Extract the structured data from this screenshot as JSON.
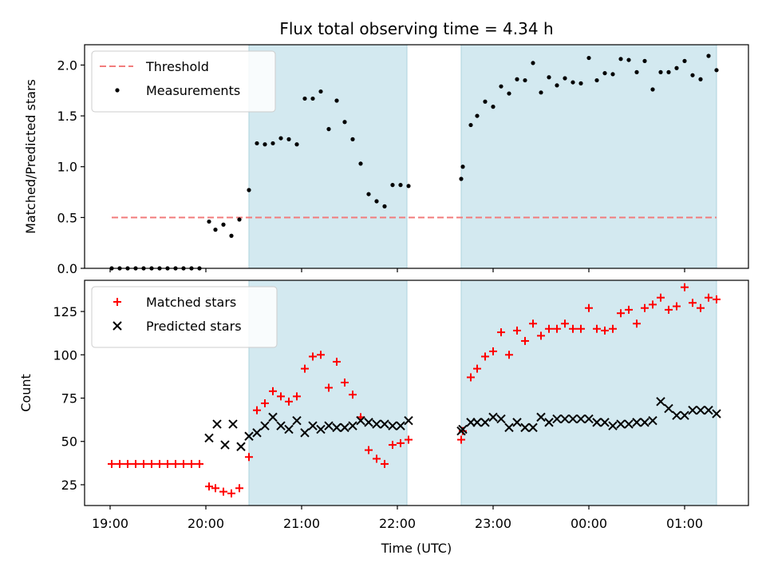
{
  "chart_data": [
    {
      "type": "scatter",
      "title": "Flux total observing time = 4.34 h",
      "xlabel": "",
      "ylabel": "Matched/Predicted stars",
      "ylim": [
        0,
        2.2
      ],
      "yticks": [
        "0.0",
        "0.5",
        "1.0",
        "1.5",
        "2.0"
      ],
      "ytick_values": [
        0,
        0.5,
        1.0,
        1.5,
        2.0
      ],
      "legend": {
        "placement": "upper-left"
      },
      "threshold": {
        "name": "Threshold",
        "value": 0.5,
        "x_start": "19:01",
        "x_end": "01:20",
        "color": "#f27c7c"
      },
      "shaded_regions": [
        {
          "start": "20:27",
          "end": "22:06",
          "color": "#d3e9f0"
        },
        {
          "start": "22:40",
          "end": "01:20",
          "color": "#d3e9f0"
        }
      ],
      "series": [
        {
          "name": "Measurements",
          "color": "#000000",
          "x": [
            "19:01",
            "19:06",
            "19:11",
            "19:16",
            "19:21",
            "19:26",
            "19:31",
            "19:36",
            "19:41",
            "19:46",
            "19:51",
            "19:56",
            "20:02",
            "20:06",
            "20:11",
            "20:16",
            "20:21",
            "20:27",
            "20:32",
            "20:37",
            "20:42",
            "20:47",
            "20:52",
            "20:57",
            "21:02",
            "21:07",
            "21:12",
            "21:17",
            "21:22",
            "21:27",
            "21:32",
            "21:37",
            "21:42",
            "21:47",
            "21:52",
            "21:57",
            "22:02",
            "22:07",
            "22:40",
            "22:41",
            "22:46",
            "22:50",
            "22:55",
            "23:00",
            "23:05",
            "23:10",
            "23:15",
            "23:20",
            "23:25",
            "23:30",
            "23:35",
            "23:40",
            "23:45",
            "23:50",
            "23:55",
            "24:00",
            "24:05",
            "24:10",
            "24:15",
            "24:20",
            "24:25",
            "24:30",
            "24:35",
            "24:40",
            "24:45",
            "24:50",
            "24:55",
            "25:00",
            "25:05",
            "25:10",
            "25:15",
            "25:20"
          ],
          "y": [
            0,
            0,
            0,
            0,
            0,
            0,
            0,
            0,
            0,
            0,
            0,
            0,
            0.46,
            0.38,
            0.43,
            0.32,
            0.48,
            0.77,
            1.23,
            1.22,
            1.23,
            1.28,
            1.27,
            1.22,
            1.67,
            1.67,
            1.74,
            1.37,
            1.65,
            1.44,
            1.27,
            1.03,
            0.73,
            0.66,
            0.61,
            0.82,
            0.82,
            0.81,
            0.88,
            1.0,
            1.41,
            1.5,
            1.64,
            1.59,
            1.79,
            1.72,
            1.86,
            1.85,
            2.02,
            1.73,
            1.88,
            1.8,
            1.87,
            1.83,
            1.82,
            2.07,
            1.85,
            1.92,
            1.91,
            2.06,
            2.05,
            1.93,
            2.04,
            1.76,
            1.93,
            1.93,
            1.97,
            2.04,
            1.9,
            1.86,
            2.09,
            1.95
          ]
        }
      ]
    },
    {
      "type": "scatter",
      "title": "",
      "xlabel": "Time (UTC)",
      "ylabel": "Count",
      "ylim": [
        13,
        143
      ],
      "yticks": [
        "25",
        "50",
        "75",
        "100",
        "125"
      ],
      "ytick_values": [
        25,
        50,
        75,
        100,
        125
      ],
      "xticks": [
        "19:00",
        "20:00",
        "21:00",
        "22:00",
        "23:00",
        "00:00",
        "01:00"
      ],
      "legend": {
        "placement": "upper-left"
      },
      "shaded_regions": [
        {
          "start": "20:27",
          "end": "22:06",
          "color": "#d3e9f0"
        },
        {
          "start": "22:40",
          "end": "01:20",
          "color": "#d3e9f0"
        }
      ],
      "series": [
        {
          "name": "Matched stars",
          "marker": "+",
          "color": "#ff0000",
          "x": [
            "19:01",
            "19:06",
            "19:11",
            "19:16",
            "19:21",
            "19:26",
            "19:31",
            "19:36",
            "19:41",
            "19:46",
            "19:51",
            "19:56",
            "20:02",
            "20:06",
            "20:11",
            "20:16",
            "20:21",
            "20:27",
            "20:32",
            "20:37",
            "20:42",
            "20:47",
            "20:52",
            "20:57",
            "21:02",
            "21:07",
            "21:12",
            "21:17",
            "21:22",
            "21:27",
            "21:32",
            "21:37",
            "21:42",
            "21:47",
            "21:52",
            "21:57",
            "22:02",
            "22:07",
            "22:40",
            "22:41",
            "22:46",
            "22:50",
            "22:55",
            "23:00",
            "23:05",
            "23:10",
            "23:15",
            "23:20",
            "23:25",
            "23:30",
            "23:35",
            "23:40",
            "23:45",
            "23:50",
            "23:55",
            "24:00",
            "24:05",
            "24:10",
            "24:15",
            "24:20",
            "24:25",
            "24:30",
            "24:35",
            "24:40",
            "24:45",
            "24:50",
            "24:55",
            "25:00",
            "25:05",
            "25:10",
            "25:15",
            "25:20"
          ],
          "y": [
            37,
            37,
            37,
            37,
            37,
            37,
            37,
            37,
            37,
            37,
            37,
            37,
            24,
            23,
            21,
            20,
            23,
            41,
            68,
            72,
            79,
            76,
            73,
            76,
            92,
            99,
            100,
            81,
            96,
            84,
            77,
            64,
            45,
            40,
            37,
            48,
            49,
            51,
            51,
            56,
            87,
            92,
            99,
            102,
            113,
            100,
            114,
            108,
            118,
            111,
            115,
            115,
            118,
            115,
            115,
            127,
            115,
            114,
            115,
            124,
            126,
            118,
            127,
            129,
            133,
            126,
            128,
            139,
            130,
            127,
            133,
            132
          ]
        },
        {
          "name": "Predicted stars",
          "marker": "x",
          "color": "#000000",
          "x": [
            "20:02",
            "20:07",
            "20:12",
            "20:17",
            "20:22",
            "20:27",
            "20:32",
            "20:37",
            "20:42",
            "20:47",
            "20:52",
            "20:57",
            "21:02",
            "21:07",
            "21:12",
            "21:17",
            "21:22",
            "21:27",
            "21:32",
            "21:37",
            "21:42",
            "21:47",
            "21:52",
            "21:57",
            "22:02",
            "22:07",
            "22:40",
            "22:41",
            "22:46",
            "22:50",
            "22:55",
            "23:00",
            "23:05",
            "23:10",
            "23:15",
            "23:20",
            "23:25",
            "23:30",
            "23:35",
            "23:40",
            "23:45",
            "23:50",
            "23:55",
            "24:00",
            "24:05",
            "24:10",
            "24:15",
            "24:20",
            "24:25",
            "24:30",
            "24:35",
            "24:40",
            "24:45",
            "24:50",
            "24:55",
            "25:00",
            "25:05",
            "25:10",
            "25:15",
            "25:20"
          ],
          "y": [
            52,
            60,
            48,
            60,
            47,
            53,
            55,
            59,
            64,
            59,
            57,
            62,
            55,
            59,
            57,
            59,
            58,
            58,
            59,
            62,
            61,
            60,
            60,
            59,
            59,
            62,
            56,
            57,
            61,
            61,
            61,
            64,
            63,
            58,
            61,
            58,
            58,
            64,
            61,
            63,
            63,
            63,
            63,
            63,
            61,
            61,
            59,
            60,
            60,
            61,
            61,
            62,
            73,
            69,
            65,
            65,
            68,
            68,
            68,
            66
          ]
        }
      ]
    }
  ]
}
